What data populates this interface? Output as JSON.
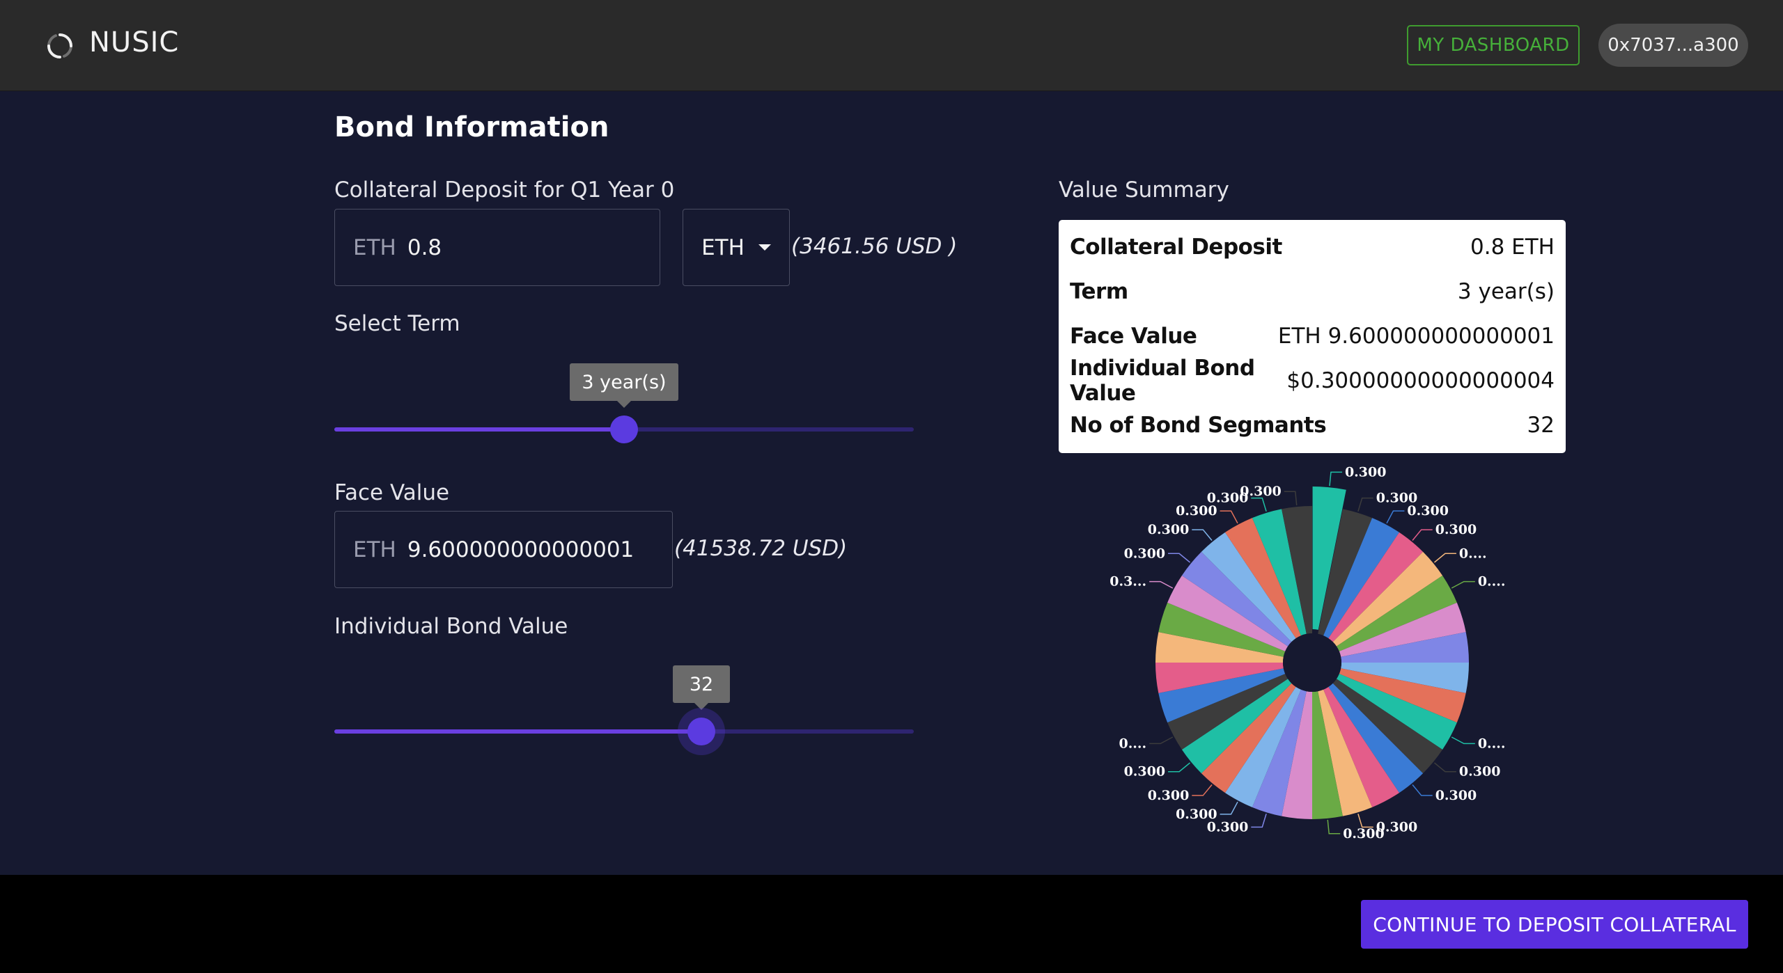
{
  "header": {
    "brand": "NUSIC",
    "dashboard_label": "MY DASHBOARD",
    "wallet_label": "0x7037...a300",
    "logo_icon": "refresh-circle-icon"
  },
  "form": {
    "title": "Bond Information",
    "collateral": {
      "label": "Collateral Deposit for Q1 Year 0",
      "prefix": "ETH",
      "value": "0.8",
      "currency": "ETH",
      "usd": "(3461.56 USD )"
    },
    "term": {
      "label": "Select Term",
      "tooltip": "3 year(s)",
      "fraction": 0.5
    },
    "face_value": {
      "label": "Face Value",
      "prefix": "ETH",
      "value": "9.600000000000001",
      "usd": "(41538.72 USD)"
    },
    "bond_value": {
      "label": "Individual Bond Value",
      "tooltip": "32",
      "fraction": 0.633
    }
  },
  "summary": {
    "label": "Value Summary",
    "rows": [
      {
        "key": "Collateral Deposit",
        "value": "0.8 ETH"
      },
      {
        "key": "Term",
        "value": "3 year(s)"
      },
      {
        "key": "Face Value",
        "value": "ETH 9.600000000000001"
      },
      {
        "key": "Individual Bond Value",
        "value": "$0.30000000000000004"
      },
      {
        "key": "No of Bond Segmants",
        "value": "32"
      }
    ]
  },
  "chart_data": {
    "type": "pie",
    "variant": "donut",
    "slice_count": 32,
    "values": [
      0.3,
      0.3,
      0.3,
      0.3,
      0.3,
      0.3,
      0.3,
      0.3,
      0.3,
      0.3,
      0.3,
      0.3,
      0.3,
      0.3,
      0.3,
      0.3,
      0.3,
      0.3,
      0.3,
      0.3,
      0.3,
      0.3,
      0.3,
      0.3,
      0.3,
      0.3,
      0.3,
      0.3,
      0.3,
      0.3,
      0.3,
      0.3
    ],
    "highlighted_index": 0,
    "colors": [
      "#1fbfa5",
      "#3c3c3c",
      "#3a7bd5",
      "#e45d8a",
      "#f4b77b",
      "#6aaa45",
      "#d98ccb",
      "#7f86e6",
      "#7fb4ea",
      "#e4715a",
      "#1fbfa5",
      "#3c3c3c",
      "#3a7bd5",
      "#e45d8a",
      "#f4b77b",
      "#6aaa45",
      "#d98ccb",
      "#7f86e6",
      "#7fb4ea",
      "#e4715a",
      "#1fbfa5",
      "#3c3c3c",
      "#3a7bd5",
      "#e45d8a",
      "#f4b77b",
      "#6aaa45",
      "#d98ccb",
      "#7f86e6",
      "#7fb4ea",
      "#e4715a",
      "#1fbfa5",
      "#3c3c3c"
    ],
    "visible_labels": [
      {
        "index": 0,
        "text": "0.300"
      },
      {
        "index": 1,
        "text": "0.300"
      },
      {
        "index": 2,
        "text": "0.300"
      },
      {
        "index": 3,
        "text": "0.300"
      },
      {
        "index": 4,
        "text": "0...."
      },
      {
        "index": 5,
        "text": "0...."
      },
      {
        "index": 10,
        "text": "0...."
      },
      {
        "index": 11,
        "text": "0.300"
      },
      {
        "index": 12,
        "text": "0.300"
      },
      {
        "index": 14,
        "text": "0.300"
      },
      {
        "index": 15,
        "text": "0.300"
      },
      {
        "index": 17,
        "text": "0.300"
      },
      {
        "index": 18,
        "text": "0.300"
      },
      {
        "index": 19,
        "text": "0.300"
      },
      {
        "index": 20,
        "text": "0.300"
      },
      {
        "index": 21,
        "text": "0...."
      },
      {
        "index": 26,
        "text": "0.3..."
      },
      {
        "index": 27,
        "text": "0.300"
      },
      {
        "index": 28,
        "text": "0.300"
      },
      {
        "index": 29,
        "text": "0.300"
      },
      {
        "index": 30,
        "text": "0.300"
      },
      {
        "index": 31,
        "text": "0.300"
      }
    ]
  },
  "footer": {
    "cta_label": "CONTINUE TO DEPOSIT COLLATERAL"
  }
}
